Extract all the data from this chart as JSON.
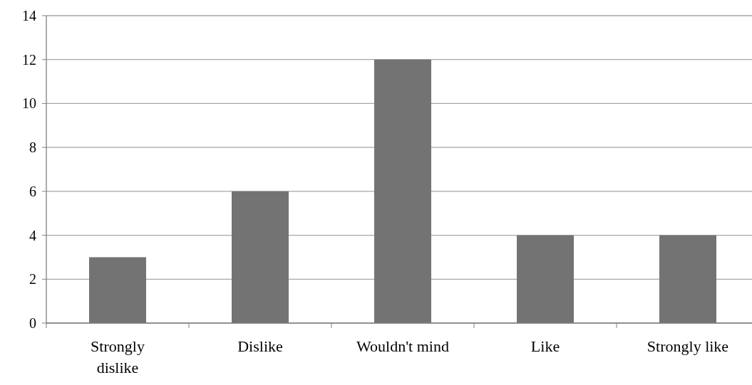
{
  "chart_data": {
    "type": "bar",
    "categories": [
      "Strongly dislike",
      "Dislike",
      "Wouldn't mind",
      "Like",
      "Strongly like"
    ],
    "values": [
      3,
      6,
      12,
      4,
      4
    ],
    "color": "#737373",
    "ylim": [
      0,
      14
    ],
    "yticks": [
      0,
      2,
      4,
      6,
      8,
      10,
      12,
      14
    ],
    "grid": "y"
  }
}
